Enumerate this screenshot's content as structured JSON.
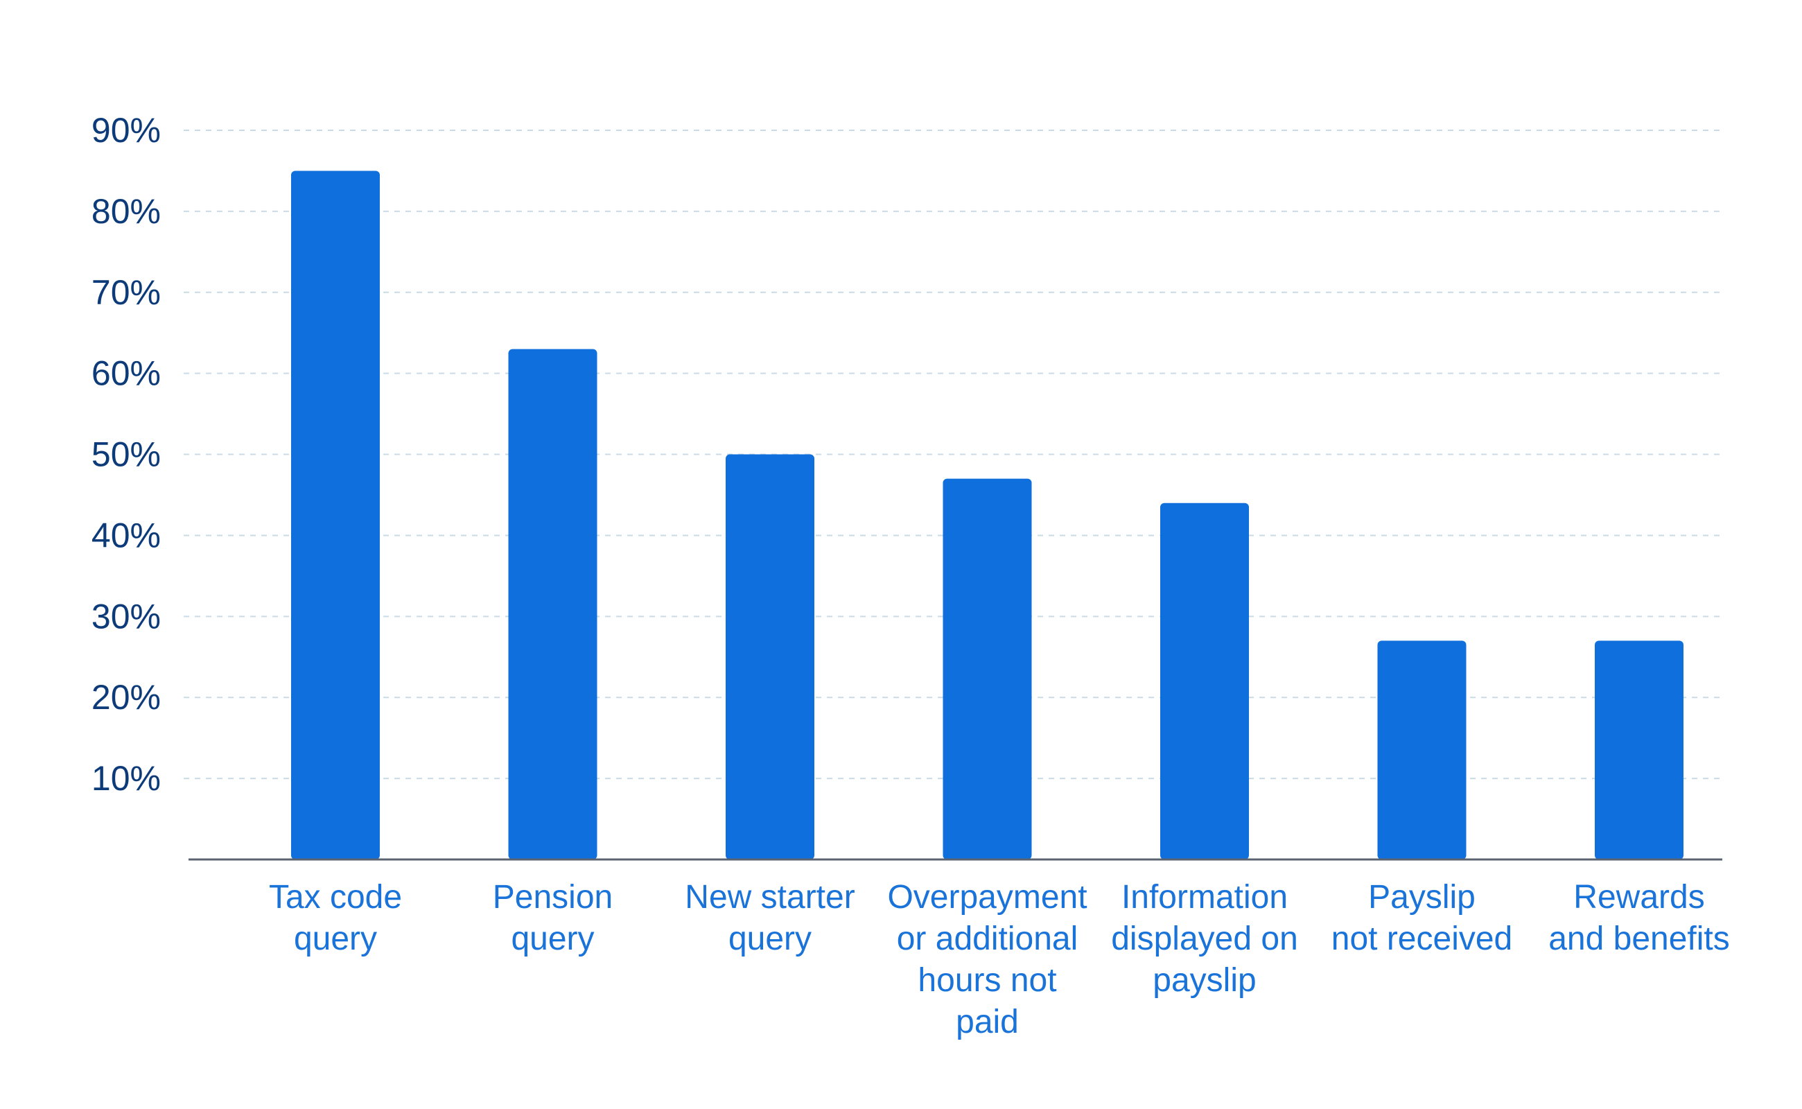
{
  "chart_data": {
    "type": "bar",
    "title": "",
    "xlabel": "",
    "ylabel": "",
    "ylim": [
      0,
      90
    ],
    "yticks": [
      10,
      20,
      30,
      40,
      50,
      60,
      70,
      80,
      90
    ],
    "ytick_labels": [
      "10%",
      "20%",
      "30%",
      "40%",
      "50%",
      "60%",
      "70%",
      "80%",
      "90%"
    ],
    "grid": true,
    "legend": "none",
    "colors": {
      "bar": "#0f6fdc",
      "tick_text": "#0d3b7a",
      "category_text": "#1a73d9",
      "grid": "#c9dbe6",
      "axis": "#5a6470"
    },
    "categories": [
      [
        "Tax code",
        "query"
      ],
      [
        "Pension",
        "query"
      ],
      [
        "New starter",
        "query"
      ],
      [
        "Overpayment",
        "or additional",
        "hours not",
        "paid"
      ],
      [
        "Information",
        "displayed on",
        "payslip"
      ],
      [
        "Payslip",
        "not received"
      ],
      [
        "Rewards",
        "and benefits"
      ]
    ],
    "values": [
      85,
      63,
      50,
      47,
      44,
      27,
      27
    ]
  }
}
